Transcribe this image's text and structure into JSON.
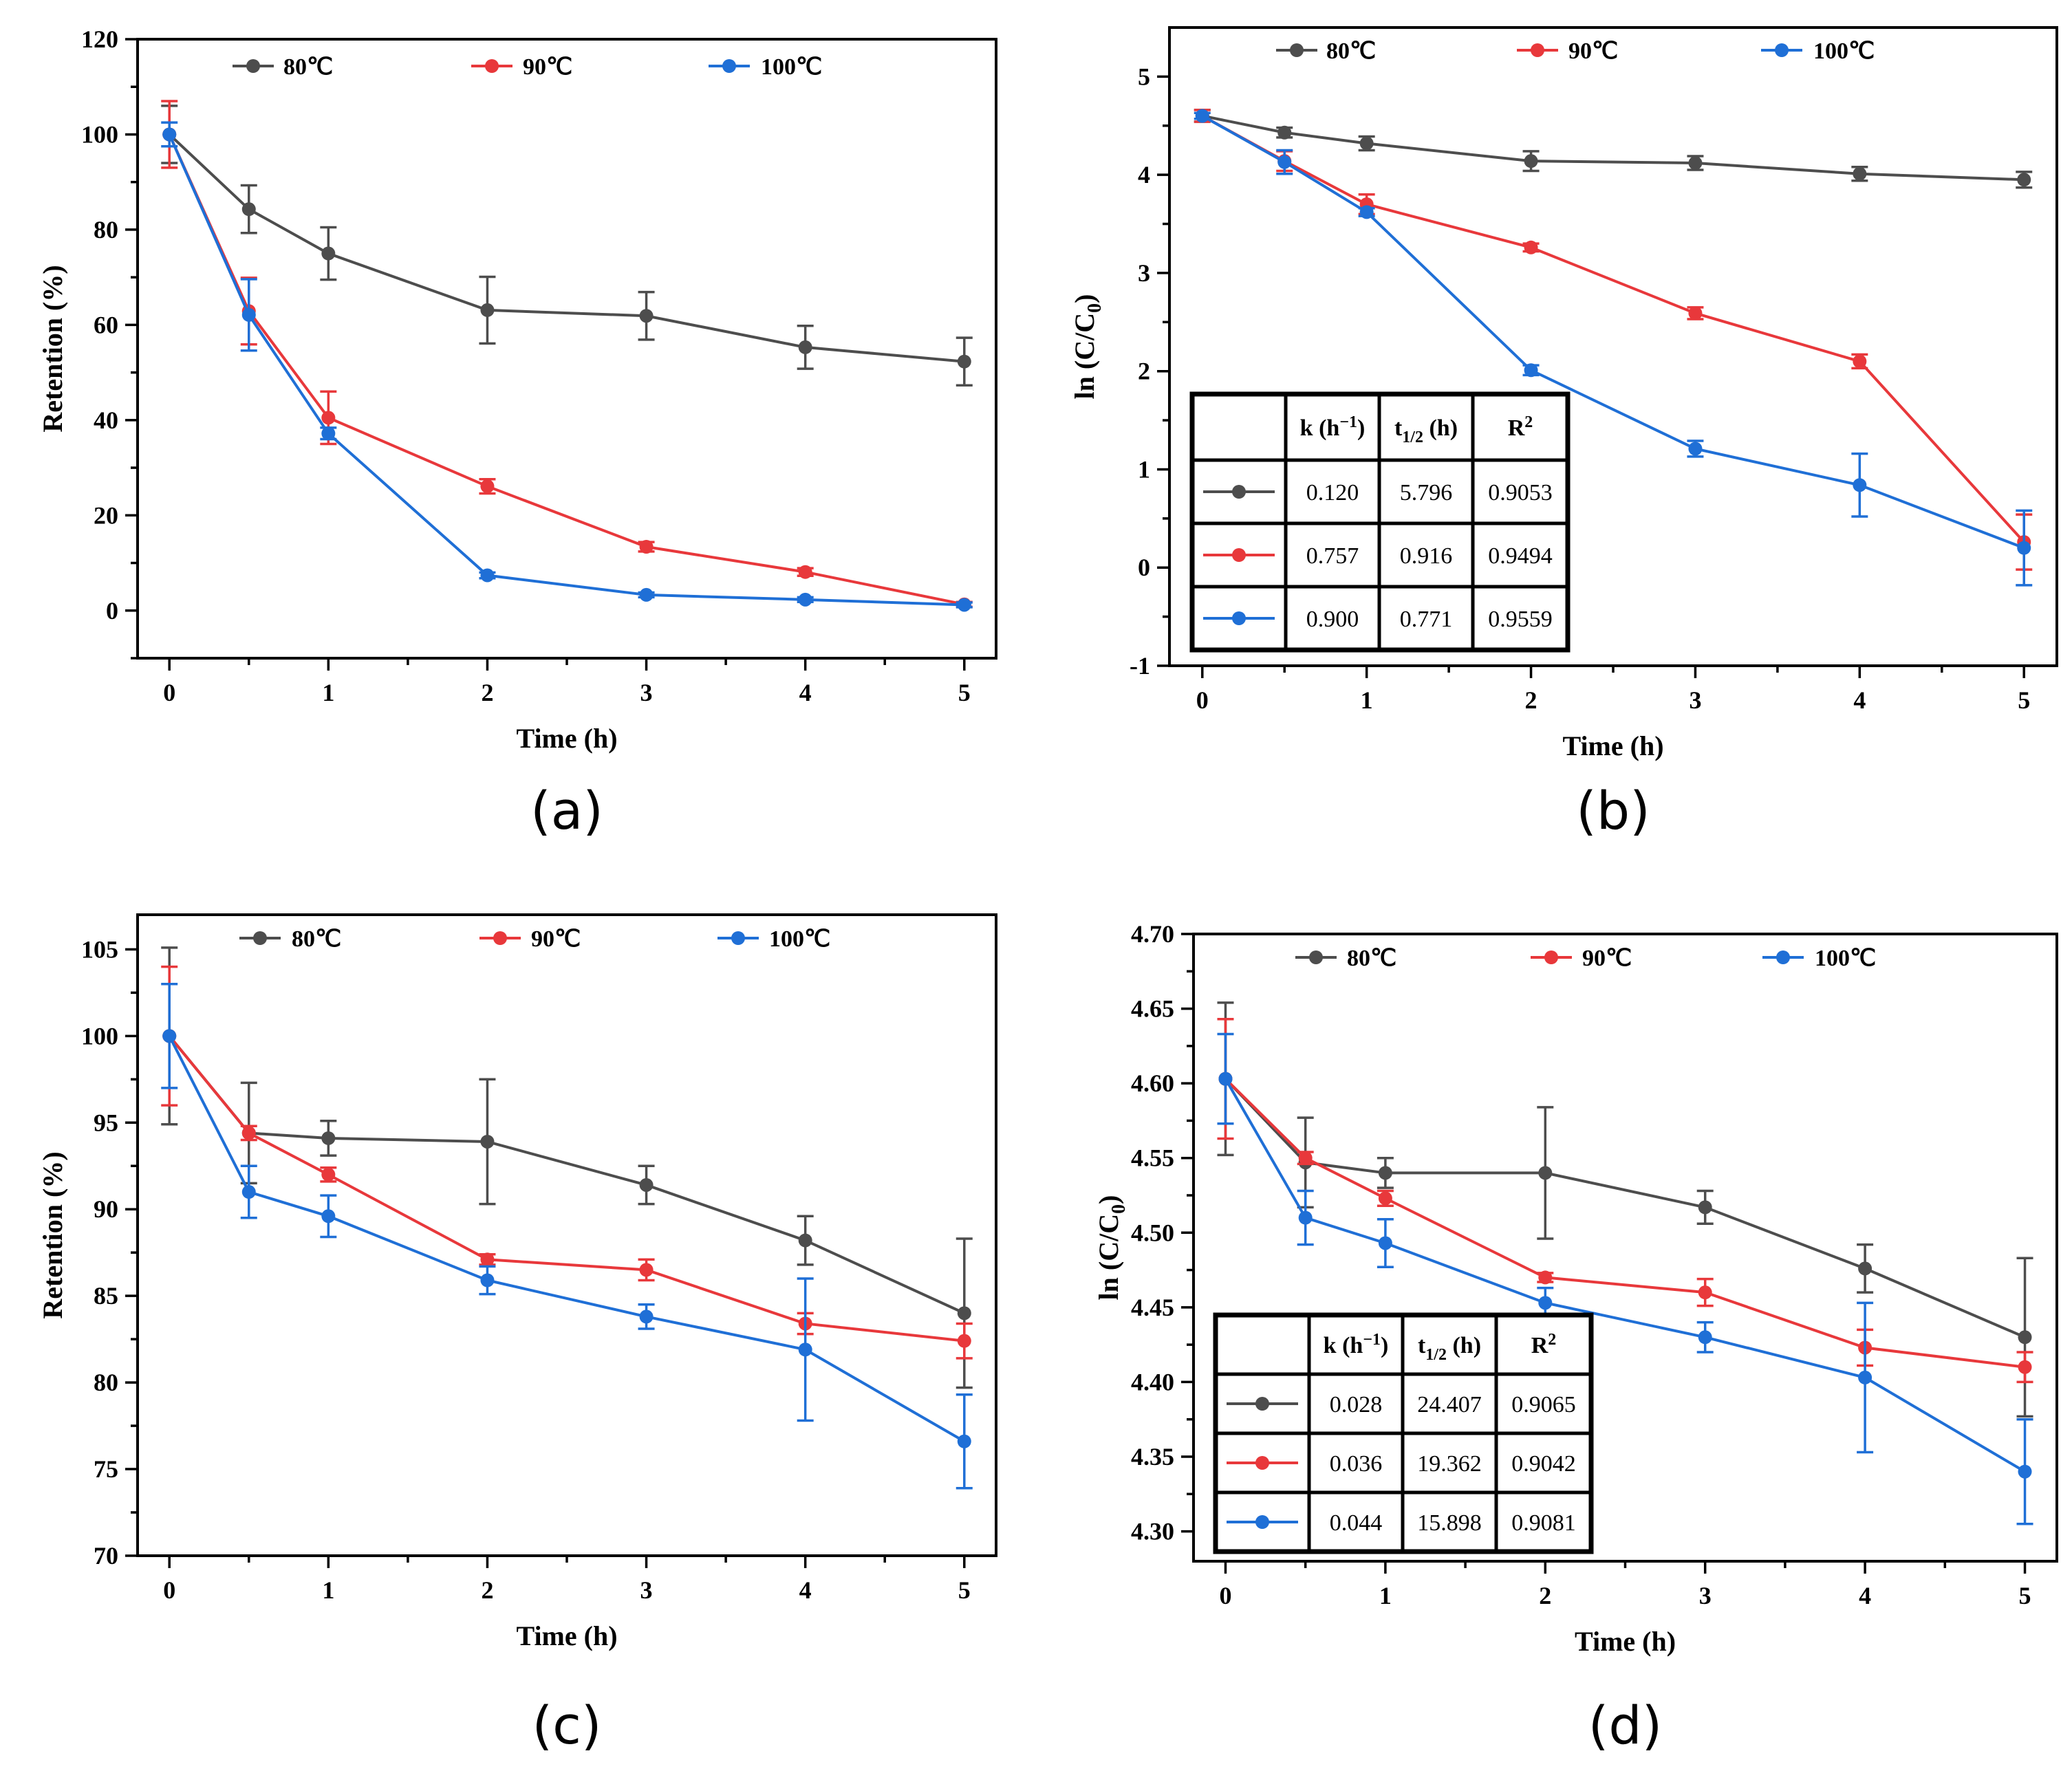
{
  "colors": {
    "80": "#4d4d4d",
    "90": "#e8383b",
    "100": "#1f6fd6"
  },
  "chart_data": [
    {
      "type": "line",
      "panel_label": "(a)",
      "xlabel": "Time (h)",
      "ylabel": "Retention (%)",
      "x": [
        0,
        0.5,
        1,
        2,
        3,
        4,
        5
      ],
      "xlim": [
        -0.2,
        5.2
      ],
      "ylim": [
        -10,
        120
      ],
      "xticks": [
        0,
        1,
        2,
        3,
        4,
        5
      ],
      "yticks": [
        0,
        20,
        40,
        60,
        80,
        100,
        120
      ],
      "legend_position": "top",
      "series": [
        {
          "name": "80℃",
          "color_key": "80",
          "values": [
            100,
            84.3,
            75.0,
            63.1,
            61.9,
            55.3,
            52.3
          ],
          "errors": [
            6.0,
            5.0,
            5.5,
            7.0,
            5.0,
            4.5,
            5.0
          ]
        },
        {
          "name": "90℃",
          "color_key": "90",
          "values": [
            100,
            62.9,
            40.5,
            26.1,
            13.4,
            8.1,
            1.3
          ],
          "errors": [
            7.0,
            7.0,
            5.5,
            1.5,
            1.0,
            0.8,
            0.5
          ]
        },
        {
          "name": "100℃",
          "color_key": "100",
          "values": [
            100,
            62.1,
            37.2,
            7.4,
            3.3,
            2.3,
            1.2
          ],
          "errors": [
            2.5,
            7.5,
            1.2,
            0.6,
            0.5,
            0.5,
            0.5
          ]
        }
      ]
    },
    {
      "type": "line",
      "panel_label": "(b)",
      "xlabel": "Time (h)",
      "ylabel": "ln (C/C",
      "ylabel_sub": "0",
      "ylabel_tail": ")",
      "x": [
        0,
        0.5,
        1,
        2,
        3,
        4,
        5
      ],
      "xlim": [
        -0.2,
        5.2
      ],
      "ylim": [
        -1,
        5.5
      ],
      "xticks": [
        0,
        1,
        2,
        3,
        4,
        5
      ],
      "yticks": [
        -1,
        0,
        1,
        2,
        3,
        4,
        5
      ],
      "legend_position": "top",
      "series": [
        {
          "name": "80℃",
          "color_key": "80",
          "values": [
            4.6,
            4.43,
            4.32,
            4.14,
            4.12,
            4.01,
            3.95
          ],
          "errors": [
            0.06,
            0.05,
            0.07,
            0.1,
            0.07,
            0.07,
            0.08
          ]
        },
        {
          "name": "90℃",
          "color_key": "90",
          "values": [
            4.6,
            4.14,
            3.7,
            3.26,
            2.59,
            2.1,
            0.26
          ],
          "errors": [
            0.06,
            0.1,
            0.1,
            0.04,
            0.06,
            0.07,
            0.28
          ]
        },
        {
          "name": "100℃",
          "color_key": "100",
          "values": [
            4.6,
            4.13,
            3.62,
            2.01,
            1.21,
            0.84,
            0.2
          ],
          "errors": [
            0.03,
            0.12,
            0.04,
            0.05,
            0.08,
            0.32,
            0.38
          ]
        }
      ],
      "table": {
        "headers": [
          "",
          "k (h",
          "t",
          "R"
        ],
        "header_k_sup": "−1",
        "header_k_tail": ")",
        "header_t_sub": "1/2",
        "header_t_tail": " (h)",
        "header_r_sup": "2",
        "rows": [
          {
            "color_key": "80",
            "k": "0.120",
            "t": "5.796",
            "r2": "0.9053"
          },
          {
            "color_key": "90",
            "k": "0.757",
            "t": "0.916",
            "r2": "0.9494"
          },
          {
            "color_key": "100",
            "k": "0.900",
            "t": "0.771",
            "r2": "0.9559"
          }
        ]
      }
    },
    {
      "type": "line",
      "panel_label": "(c)",
      "xlabel": "Time (h)",
      "ylabel": "Retention (%)",
      "x": [
        0,
        0.5,
        1,
        2,
        3,
        4,
        5
      ],
      "xlim": [
        -0.2,
        5.2
      ],
      "ylim": [
        70,
        107
      ],
      "xticks": [
        0,
        1,
        2,
        3,
        4,
        5
      ],
      "yticks": [
        70,
        75,
        80,
        85,
        90,
        95,
        100,
        105
      ],
      "legend_position": "top",
      "series": [
        {
          "name": "80℃",
          "color_key": "80",
          "values": [
            100,
            94.4,
            94.1,
            93.9,
            91.4,
            88.2,
            84.0
          ],
          "errors": [
            5.1,
            2.9,
            1.0,
            3.6,
            1.1,
            1.4,
            4.3
          ]
        },
        {
          "name": "90℃",
          "color_key": "90",
          "values": [
            100,
            94.4,
            92.0,
            87.1,
            86.5,
            83.4,
            82.4
          ],
          "errors": [
            4.0,
            0.4,
            0.4,
            0.3,
            0.6,
            0.6,
            1.0
          ]
        },
        {
          "name": "100℃",
          "color_key": "100",
          "values": [
            100,
            91.0,
            89.6,
            85.9,
            83.8,
            81.9,
            76.6
          ],
          "errors": [
            3.0,
            1.5,
            1.2,
            0.8,
            0.7,
            4.1,
            2.7
          ]
        }
      ]
    },
    {
      "type": "line",
      "panel_label": "(d)",
      "xlabel": "Time (h)",
      "ylabel": "ln (C/C",
      "ylabel_sub": "0",
      "ylabel_tail": ")",
      "x": [
        0,
        0.5,
        1,
        2,
        3,
        4,
        5
      ],
      "xlim": [
        -0.2,
        5.2
      ],
      "ylim": [
        4.28,
        4.7
      ],
      "xticks": [
        0,
        1,
        2,
        3,
        4,
        5
      ],
      "yticks": [
        4.3,
        4.35,
        4.4,
        4.45,
        4.5,
        4.55,
        4.6,
        4.65,
        4.7
      ],
      "legend_position": "top",
      "series": [
        {
          "name": "80℃",
          "color_key": "80",
          "values": [
            4.603,
            4.547,
            4.54,
            4.54,
            4.517,
            4.476,
            4.43
          ],
          "errors": [
            0.051,
            0.03,
            0.01,
            0.044,
            0.011,
            0.016,
            0.053
          ]
        },
        {
          "name": "90℃",
          "color_key": "90",
          "values": [
            4.603,
            4.55,
            4.523,
            4.47,
            4.46,
            4.423,
            4.41
          ],
          "errors": [
            0.04,
            0.004,
            0.005,
            0.003,
            0.009,
            0.012,
            0.01
          ]
        },
        {
          "name": "100℃",
          "color_key": "100",
          "values": [
            4.603,
            4.51,
            4.493,
            4.453,
            4.43,
            4.403,
            4.34
          ],
          "errors": [
            0.03,
            0.018,
            0.016,
            0.01,
            0.01,
            0.05,
            0.035
          ]
        }
      ],
      "table": {
        "headers": [
          "",
          "k (h",
          "t",
          "R"
        ],
        "header_k_sup": "−1",
        "header_k_tail": ")",
        "header_t_sub": "1/2",
        "header_t_tail": " (h)",
        "header_r_sup": "2",
        "rows": [
          {
            "color_key": "80",
            "k": "0.028",
            "t": "24.407",
            "r2": "0.9065"
          },
          {
            "color_key": "90",
            "k": "0.036",
            "t": "19.362",
            "r2": "0.9042"
          },
          {
            "color_key": "100",
            "k": "0.044",
            "t": "15.898",
            "r2": "0.9081"
          }
        ]
      }
    }
  ]
}
